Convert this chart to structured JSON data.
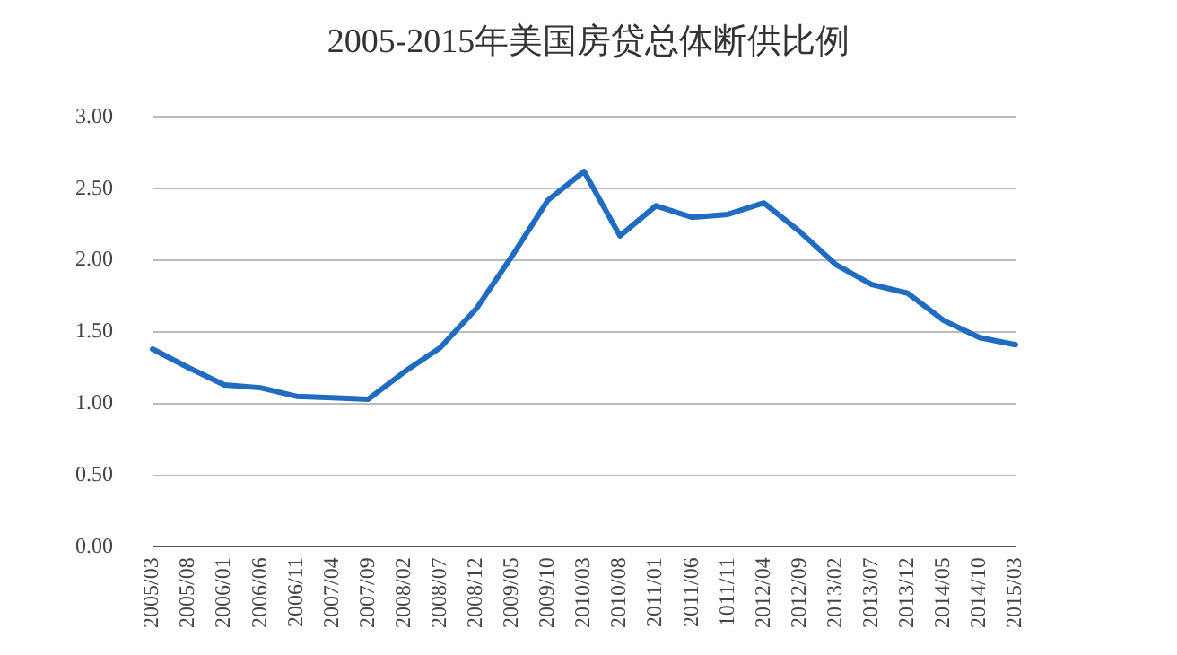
{
  "chart_data": {
    "type": "line",
    "title": "2005-2015年美国房贷总体断供比例",
    "categories": [
      "2005/03",
      "2005/08",
      "2006/01",
      "2006/06",
      "2006/11",
      "2007/04",
      "2007/09",
      "2008/02",
      "2008/07",
      "2008/12",
      "2009/05",
      "2009/10",
      "2010/03",
      "2010/08",
      "2011/01",
      "2011/06",
      "1011/11",
      "2012/04",
      "2012/09",
      "2013/02",
      "2013/07",
      "2013/12",
      "2014/05",
      "2014/10",
      "2015/03"
    ],
    "series": [
      {
        "color": "#1f6cc0",
        "values": [
          1.38,
          1.25,
          1.13,
          1.11,
          1.05,
          1.04,
          1.03,
          1.22,
          1.39,
          1.66,
          2.03,
          2.42,
          2.62,
          2.17,
          2.38,
          2.3,
          2.32,
          2.4,
          2.2,
          1.97,
          1.83,
          1.77,
          1.58,
          1.46,
          1.41
        ]
      }
    ],
    "ylim": [
      0,
      3
    ],
    "yticks": [
      {
        "value": 0,
        "label": "0.00"
      },
      {
        "value": 0.5,
        "label": "0.50"
      },
      {
        "value": 1,
        "label": "1.00"
      },
      {
        "value": 1.5,
        "label": "1.50"
      },
      {
        "value": 2,
        "label": "2.00"
      },
      {
        "value": 2.5,
        "label": "2.50"
      },
      {
        "value": 3,
        "label": "3.00"
      }
    ],
    "grid": "y",
    "legend": false,
    "marker": "none",
    "line_style": "solid"
  }
}
